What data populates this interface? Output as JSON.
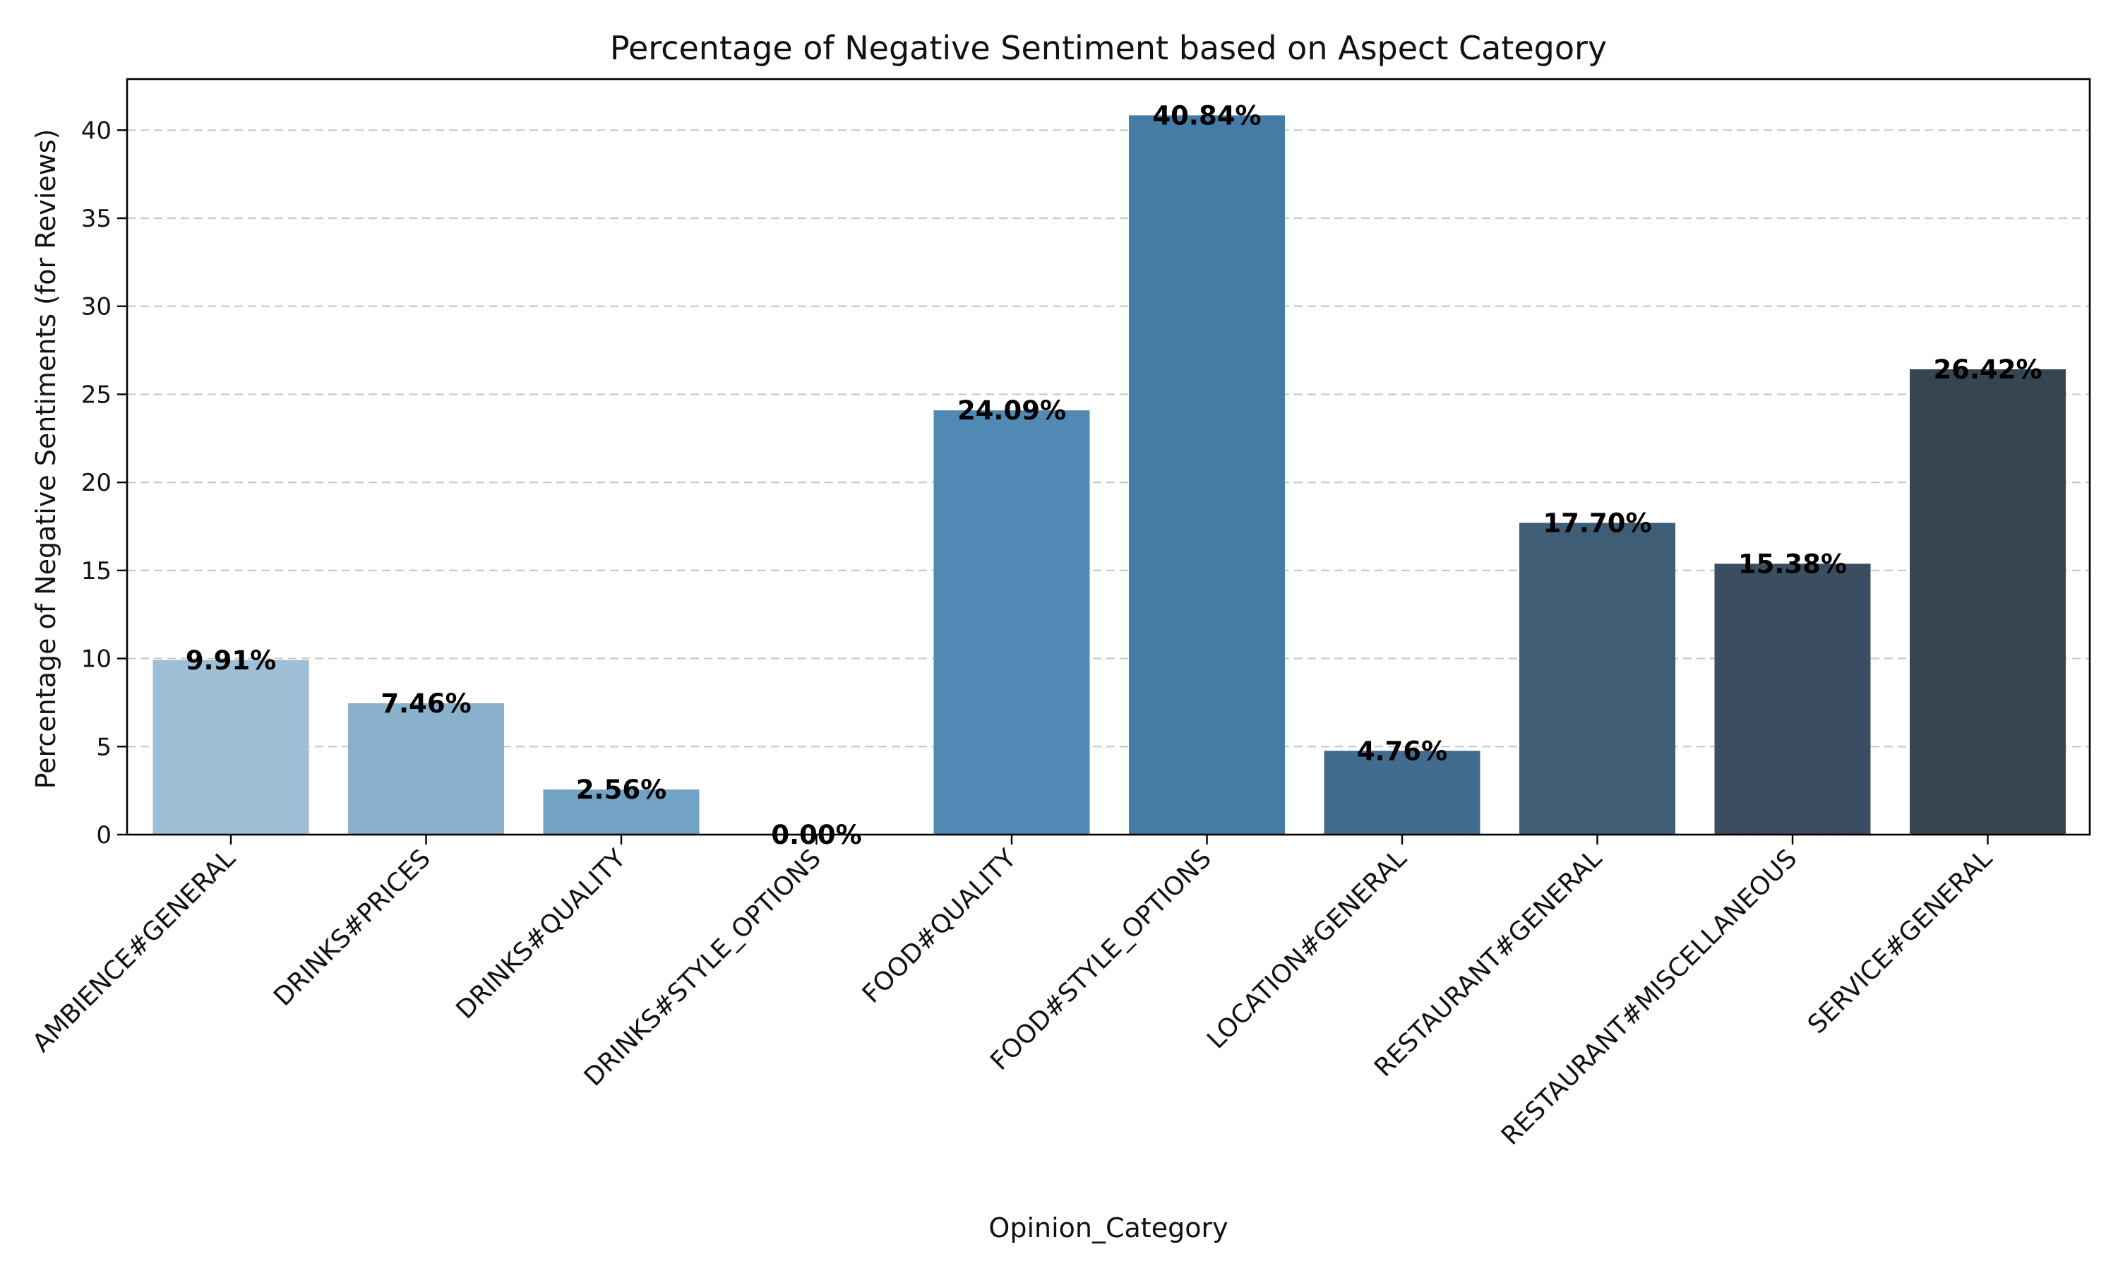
{
  "chart_data": {
    "type": "bar",
    "title": "Percentage of Negative Sentiment based on Aspect Category",
    "xlabel": "Opinion_Category",
    "ylabel": "Percentage of Negative Sentiments (for Reviews)",
    "categories": [
      "AMBIENCE#GENERAL",
      "DRINKS#PRICES",
      "DRINKS#QUALITY",
      "DRINKS#STYLE_OPTIONS",
      "FOOD#QUALITY",
      "FOOD#STYLE_OPTIONS",
      "LOCATION#GENERAL",
      "RESTAURANT#GENERAL",
      "RESTAURANT#MISCELLANEOUS",
      "SERVICE#GENERAL"
    ],
    "values": [
      9.91,
      7.46,
      2.56,
      0.0,
      24.09,
      40.84,
      4.76,
      17.7,
      15.38,
      26.42
    ],
    "data_labels": [
      "9.91%",
      "7.46%",
      "2.56%",
      "0.00%",
      "24.09%",
      "40.84%",
      "4.76%",
      "17.70%",
      "15.38%",
      "26.42%"
    ],
    "colors": [
      "#9ebfd6",
      "#89b1cc",
      "#73a3c4",
      "#5d95bd",
      "#5089b4",
      "#457ca6",
      "#416c8d",
      "#3f5d75",
      "#3b4e61",
      "#36454f"
    ],
    "yticks": [
      0,
      5,
      10,
      15,
      20,
      25,
      30,
      35,
      40
    ],
    "ylim": [
      0,
      42.9
    ],
    "grid": "horizontal dashed",
    "legend": "none"
  }
}
